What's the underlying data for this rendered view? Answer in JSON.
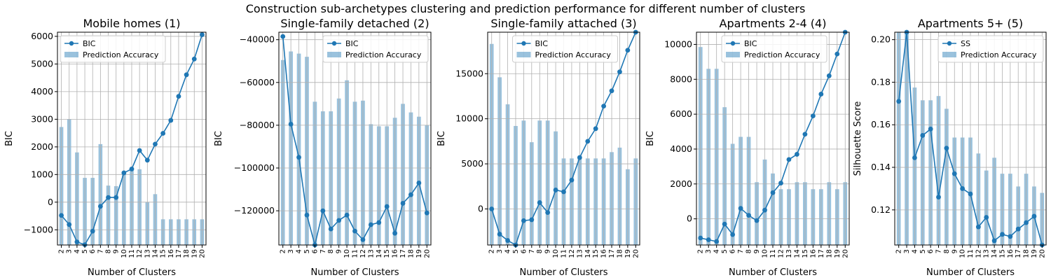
{
  "figure": {
    "title": "Construction sub-archetypes clustering and prediction performance for different number of clusters"
  },
  "colors": {
    "line": "#1f77b4",
    "bar": "#1f77b4",
    "bar_opacity": 0.45,
    "grid": "#b0b0b0"
  },
  "chart_data": [
    {
      "type": "bar+line",
      "title": "Mobile homes (1)",
      "xlabel": "Number of Clusters",
      "ylabel": "BIC",
      "categories": [
        "2",
        "3",
        "4",
        "5",
        "6",
        "7",
        "8",
        "9",
        "10",
        "11",
        "12",
        "13",
        "14",
        "15",
        "16",
        "17",
        "18",
        "19",
        "20"
      ],
      "ylim": [
        -1550,
        6150
      ],
      "yticks": [
        -1000,
        0,
        1000,
        2000,
        3000,
        4000,
        5000,
        6000
      ],
      "grid": true,
      "legend_placement": "upper-left",
      "series": [
        {
          "name": "BIC",
          "type": "line",
          "values": [
            -480,
            -810,
            -1440,
            -1540,
            -1050,
            -150,
            170,
            170,
            1060,
            1200,
            1870,
            1520,
            2100,
            2490,
            2960,
            3830,
            4610,
            5180,
            6060
          ]
        },
        {
          "name": "Prediction Accuracy",
          "type": "bar",
          "values": [
            2720,
            3000,
            1800,
            880,
            880,
            2100,
            600,
            580,
            1080,
            1190,
            1190,
            0,
            290,
            -620,
            -620,
            -620,
            -620,
            -620,
            -620
          ]
        }
      ]
    },
    {
      "type": "bar+line",
      "title": "Single-family detached (2)",
      "xlabel": "Number of Clusters",
      "ylabel": "BIC",
      "categories": [
        "2",
        "3",
        "4",
        "5",
        "6",
        "7",
        "8",
        "9",
        "10",
        "11",
        "12",
        "13",
        "14",
        "15",
        "16",
        "17",
        "18",
        "19",
        "20"
      ],
      "ylim": [
        -136000,
        -36500
      ],
      "yticks": [
        -120000,
        -100000,
        -80000,
        -60000,
        -40000
      ],
      "grid": true,
      "legend_placement": "upper-right",
      "series": [
        {
          "name": "BIC",
          "type": "line",
          "values": [
            -38500,
            -79500,
            -95000,
            -122000,
            -136500,
            -120000,
            -128500,
            -124500,
            -122000,
            -129500,
            -133500,
            -126500,
            -125500,
            -118000,
            -130500,
            -116500,
            -112500,
            -107000,
            -121000
          ]
        },
        {
          "name": "Prediction Accuracy",
          "type": "bar",
          "values": [
            -49500,
            -45500,
            -46500,
            -48000,
            -69000,
            -73500,
            -73500,
            -67500,
            -59000,
            -69000,
            -68500,
            -79500,
            -80500,
            -80500,
            -76500,
            -70000,
            -74000,
            -76000,
            -80000
          ]
        }
      ]
    },
    {
      "type": "bar+line",
      "title": "Single-family attached (3)",
      "xlabel": "Number of Clusters",
      "ylabel": "BIC",
      "categories": [
        "2",
        "3",
        "4",
        "5",
        "6",
        "7",
        "8",
        "9",
        "10",
        "11",
        "12",
        "13",
        "14",
        "15",
        "16",
        "17",
        "18",
        "19",
        "20"
      ],
      "ylim": [
        -4000,
        19600
      ],
      "yticks": [
        0,
        5000,
        10000,
        15000
      ],
      "grid": true,
      "legend_placement": "upper-center",
      "series": [
        {
          "name": "BIC",
          "type": "line",
          "values": [
            0,
            -2800,
            -3500,
            -4000,
            -1300,
            -1200,
            700,
            -400,
            2100,
            1900,
            3200,
            5700,
            7500,
            8900,
            11400,
            13100,
            15200,
            17600,
            19600
          ]
        },
        {
          "name": "Prediction Accuracy",
          "type": "bar",
          "values": [
            18300,
            14600,
            11600,
            9200,
            9800,
            7400,
            9800,
            9800,
            8600,
            5600,
            5600,
            5600,
            5600,
            5600,
            5600,
            6300,
            6800,
            4400,
            5600
          ]
        }
      ]
    },
    {
      "type": "bar+line",
      "title": "Apartments 2-4 (4)",
      "xlabel": "Number of Clusters",
      "ylabel": "BIC",
      "categories": [
        "2",
        "3",
        "4",
        "5",
        "6",
        "7",
        "8",
        "9",
        "10",
        "11",
        "12",
        "13",
        "14",
        "15",
        "16",
        "17",
        "18",
        "19",
        "20"
      ],
      "ylim": [
        -1500,
        10700
      ],
      "yticks": [
        0,
        2000,
        4000,
        6000,
        8000,
        10000
      ],
      "grid": true,
      "legend_placement": "upper-center",
      "series": [
        {
          "name": "BIC",
          "type": "line",
          "values": [
            -1100,
            -1200,
            -1300,
            -300,
            -900,
            600,
            200,
            -100,
            500,
            1500,
            2050,
            3400,
            3700,
            4850,
            5900,
            7150,
            8200,
            9450,
            10700
          ]
        },
        {
          "name": "Prediction Accuracy",
          "type": "bar",
          "values": [
            9850,
            8600,
            8600,
            6400,
            4300,
            4700,
            4700,
            2100,
            3400,
            2600,
            1700,
            1700,
            2100,
            2100,
            1700,
            1700,
            2100,
            1700,
            2100
          ]
        }
      ]
    },
    {
      "type": "bar+line",
      "title": "Apartments 5+ (5)",
      "xlabel": "Number of Clusters",
      "ylabel": "Silhouette Score",
      "categories": [
        "2",
        "3",
        "4",
        "5",
        "6",
        "7",
        "8",
        "9",
        "10",
        "11",
        "12",
        "13",
        "14",
        "15",
        "16",
        "17",
        "18",
        "19",
        "20"
      ],
      "ylim": [
        0.1035,
        0.2035
      ],
      "yticks": [
        0.12,
        0.14,
        0.16,
        0.18,
        0.2
      ],
      "grid": true,
      "legend_placement": "upper-right",
      "series": [
        {
          "name": "SS",
          "type": "line",
          "values": [
            0.171,
            0.2035,
            0.1445,
            0.155,
            0.158,
            0.126,
            0.149,
            0.137,
            0.13,
            0.1275,
            0.112,
            0.1165,
            0.1055,
            0.1085,
            0.1075,
            0.111,
            0.114,
            0.117,
            0.1035
          ]
        },
        {
          "name": "Prediction Accuracy",
          "type": "bar",
          "values": [
            0.2035,
            0.2035,
            0.1775,
            0.1715,
            0.1715,
            0.1735,
            0.1675,
            0.154,
            0.154,
            0.154,
            0.1465,
            0.1385,
            0.1445,
            0.137,
            0.137,
            0.131,
            0.137,
            0.131,
            0.128
          ]
        }
      ]
    }
  ]
}
